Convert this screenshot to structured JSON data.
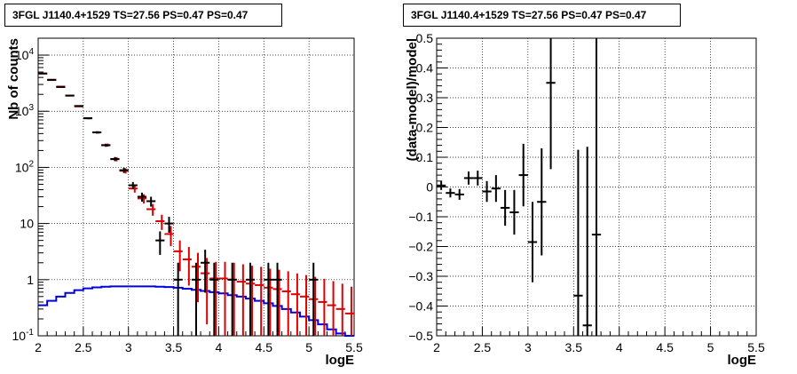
{
  "colors": {
    "data": "#000000",
    "total_model": "#dd0000",
    "source_model": "#0000dd",
    "grid": "#000000"
  },
  "chart_data": [
    {
      "type": "histogram-errorbars",
      "title": "3FGL J1140.4+1529 TS=27.56 PS=0.47 PS=0.47",
      "xlabel": "logE",
      "ylabel": "Nb of counts",
      "xlim": [
        2,
        5.5
      ],
      "ylim": [
        0.1,
        20000
      ],
      "yscale": "log",
      "grid": true,
      "x_ticks": [
        "2",
        "2.5",
        "3",
        "3.5",
        "4",
        "4.5",
        "5",
        "5.5"
      ],
      "y_ticks": [
        "10^-1",
        "1",
        "10",
        "10^2",
        "10^3",
        "10^4"
      ],
      "bin_width": 0.1,
      "series": [
        {
          "kind": "data",
          "x": [
            2.05,
            2.15,
            2.25,
            2.35,
            2.45,
            2.55,
            2.65,
            2.75,
            2.85,
            2.95,
            3.05,
            3.15,
            3.25,
            3.35,
            3.45,
            3.55,
            3.65,
            3.75,
            3.85,
            3.95,
            4.05,
            4.15,
            4.25,
            4.35,
            4.45,
            4.55,
            4.65,
            4.75,
            4.85,
            4.95,
            5.05,
            5.15,
            5.25,
            5.35,
            5.45
          ],
          "y": [
            4700,
            3600,
            2700,
            1900,
            1240,
            750,
            420,
            248,
            141,
            89,
            48,
            30,
            25,
            5,
            10,
            1,
            0,
            1,
            2,
            1,
            0,
            1,
            0,
            1,
            0,
            1,
            1,
            0,
            0,
            0,
            1,
            0,
            0,
            0,
            0
          ]
        },
        {
          "kind": "total_model",
          "x": [
            2.05,
            2.15,
            2.25,
            2.35,
            2.45,
            2.55,
            2.65,
            2.75,
            2.85,
            2.95,
            3.05,
            3.15,
            3.25,
            3.35,
            3.45,
            3.55,
            3.65,
            3.75,
            3.85,
            3.95,
            4.05,
            4.15,
            4.25,
            4.35,
            4.45,
            4.55,
            4.65,
            4.75,
            4.85,
            4.95,
            5.05,
            5.15,
            5.25,
            5.35,
            5.45
          ],
          "y": [
            4700,
            3650,
            2750,
            1900,
            1220,
            750,
            420,
            250,
            140,
            87,
            42,
            28,
            18,
            11,
            6.5,
            3.2,
            2.3,
            1.7,
            1.3,
            1.05,
            1.05,
            1.0,
            0.92,
            0.85,
            0.8,
            0.72,
            0.68,
            0.62,
            0.55,
            0.5,
            0.45,
            0.4,
            0.35,
            0.3,
            0.25
          ]
        },
        {
          "kind": "source_model",
          "edges": [
            2.0,
            2.1,
            2.2,
            2.3,
            2.4,
            2.5,
            2.6,
            2.7,
            2.8,
            2.9,
            3.0,
            3.1,
            3.2,
            3.3,
            3.4,
            3.5,
            3.6,
            3.7,
            3.8,
            3.9,
            4.0,
            4.1,
            4.2,
            4.3,
            4.4,
            4.5,
            4.6,
            4.7,
            4.8,
            4.9,
            5.0,
            5.1,
            5.2,
            5.3,
            5.4,
            5.5
          ],
          "y": [
            0.35,
            0.42,
            0.5,
            0.58,
            0.65,
            0.7,
            0.73,
            0.75,
            0.76,
            0.76,
            0.76,
            0.76,
            0.76,
            0.75,
            0.74,
            0.72,
            0.69,
            0.66,
            0.63,
            0.6,
            0.57,
            0.53,
            0.5,
            0.46,
            0.42,
            0.38,
            0.34,
            0.3,
            0.26,
            0.22,
            0.19,
            0.16,
            0.13,
            0.11,
            0.1
          ]
        }
      ]
    },
    {
      "type": "residuals-errorbars",
      "title": "3FGL J1140.4+1529 TS=27.56 PS=0.47 PS=0.47",
      "xlabel": "logE",
      "ylabel": "(data-model)/model",
      "xlim": [
        2,
        5.5
      ],
      "ylim": [
        -0.5,
        0.5
      ],
      "grid": true,
      "x_ticks": [
        "2",
        "2.5",
        "3",
        "3.5",
        "4",
        "4.5",
        "5",
        "5.5"
      ],
      "y_ticks": [
        "−0.5",
        "−0.4",
        "−0.3",
        "−0.2",
        "−0.1",
        "0",
        "0.1",
        "0.2",
        "0.3",
        "0.4",
        "0.5"
      ],
      "points": {
        "x": [
          2.05,
          2.15,
          2.25,
          2.35,
          2.45,
          2.55,
          2.65,
          2.75,
          2.85,
          2.95,
          3.05,
          3.15,
          3.25,
          3.55,
          3.65,
          3.75
        ],
        "y": [
          0.005,
          -0.02,
          -0.025,
          0.03,
          0.03,
          -0.015,
          -0.005,
          -0.07,
          -0.085,
          0.04,
          -0.185,
          -0.05,
          0.35,
          -0.365,
          -0.465,
          -0.16
        ],
        "err": [
          0.015,
          0.015,
          0.018,
          0.022,
          0.025,
          0.035,
          0.045,
          0.06,
          0.075,
          0.105,
          0.135,
          0.18,
          0.29,
          0.49,
          0.6,
          0.75
        ]
      }
    }
  ]
}
